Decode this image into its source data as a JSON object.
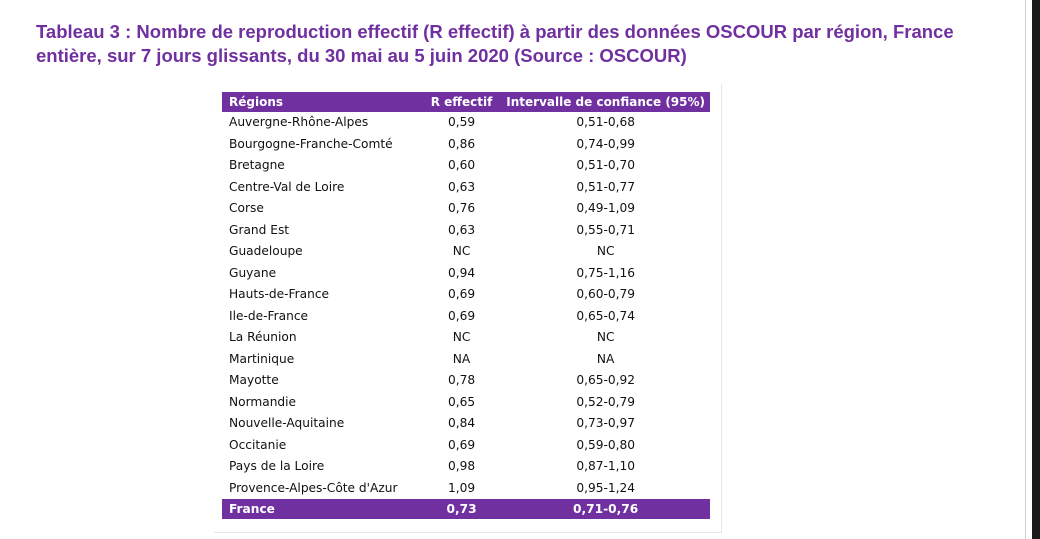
{
  "title": "Tableau 3 : Nombre de reproduction effectif (R effectif) à partir des données OSCOUR par région, France entière, sur 7 jours glissants, du 30 mai au 5 juin 2020 (Source : OSCOUR)",
  "table": {
    "headers": [
      "Régions",
      "R effectif",
      "Intervalle de confiance (95%)"
    ],
    "rows": [
      {
        "region": "Auvergne-Rhône-Alpes",
        "r": "0,59",
        "ci": "0,51-0,68"
      },
      {
        "region": "Bourgogne-Franche-Comté",
        "r": "0,86",
        "ci": "0,74-0,99"
      },
      {
        "region": "Bretagne",
        "r": "0,60",
        "ci": "0,51-0,70"
      },
      {
        "region": "Centre-Val de Loire",
        "r": "0,63",
        "ci": "0,51-0,77"
      },
      {
        "region": "Corse",
        "r": "0,76",
        "ci": "0,49-1,09"
      },
      {
        "region": "Grand Est",
        "r": "0,63",
        "ci": "0,55-0,71"
      },
      {
        "region": "Guadeloupe",
        "r": "NC",
        "ci": "NC"
      },
      {
        "region": "Guyane",
        "r": "0,94",
        "ci": "0,75-1,16"
      },
      {
        "region": "Hauts-de-France",
        "r": "0,69",
        "ci": "0,60-0,79"
      },
      {
        "region": "Ile-de-France",
        "r": "0,69",
        "ci": "0,65-0,74"
      },
      {
        "region": "La Réunion",
        "r": "NC",
        "ci": "NC"
      },
      {
        "region": "Martinique",
        "r": "NA",
        "ci": "NA"
      },
      {
        "region": "Mayotte",
        "r": "0,78",
        "ci": "0,65-0,92"
      },
      {
        "region": "Normandie",
        "r": "0,65",
        "ci": "0,52-0,79"
      },
      {
        "region": "Nouvelle-Aquitaine",
        "r": "0,84",
        "ci": "0,73-0,97"
      },
      {
        "region": "Occitanie",
        "r": "0,69",
        "ci": "0,59-0,80"
      },
      {
        "region": "Pays de la Loire",
        "r": "0,98",
        "ci": "0,87-1,10"
      },
      {
        "region": "Provence-Alpes-Côte d'Azur",
        "r": "1,09",
        "ci": "0,95-1,24"
      }
    ],
    "total": {
      "region": "France",
      "r": "0,73",
      "ci": "0,71-0,76"
    }
  },
  "colors": {
    "accent": "#7030a0",
    "header_text": "#ffffff"
  }
}
